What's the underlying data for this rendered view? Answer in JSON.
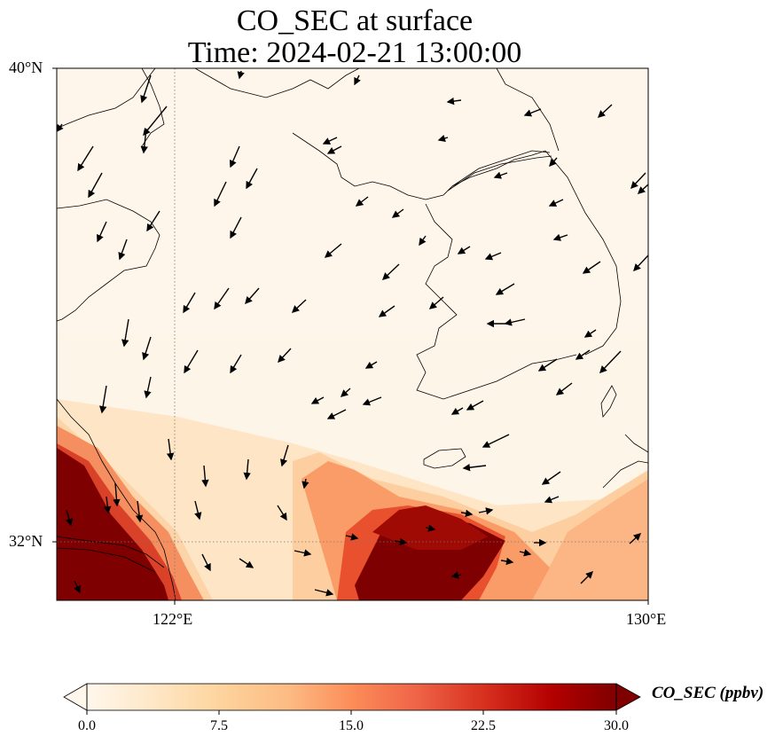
{
  "title": {
    "line1": "CO_SEC at surface",
    "line2": "Time: 2024-02-21 13:00:00"
  },
  "axes": {
    "lat_labels": [
      "40°N",
      "32°N"
    ],
    "lon_labels": [
      "122°E",
      "130°E"
    ],
    "extent": {
      "lon_min": 120,
      "lon_max": 130,
      "lat_min": 31,
      "lat_max": 40
    },
    "gridlines": {
      "lons": [
        122
      ],
      "lats": [
        32
      ],
      "style": "dotted"
    }
  },
  "field": {
    "variable": "CO_SEC",
    "level": "surface",
    "colormap": "OrRd",
    "high_regions": [
      "southwest corner (Yangtze River delta) above 30 ppbv",
      "southern band around 31-32°N, 125.5-127.5°E above 30 ppbv"
    ]
  },
  "colorbar": {
    "label": "CO_SEC (ppbv)",
    "ticks": [
      "0.0",
      "7.5",
      "15.0",
      "22.5",
      "30.0"
    ],
    "range": [
      0,
      30
    ],
    "extend": "both",
    "colors": [
      "#fff7ec",
      "#fee8c8",
      "#fdd49e",
      "#fdbb84",
      "#fc8d59",
      "#ef6548",
      "#d7301f",
      "#b30000",
      "#7f0000"
    ]
  },
  "wind_vectors": "shown as black arrows"
}
